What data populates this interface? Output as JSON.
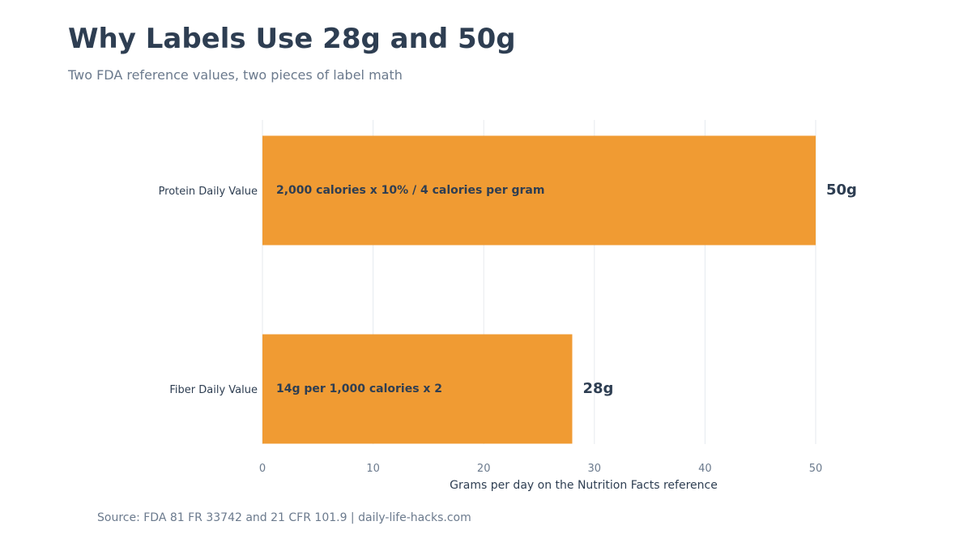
{
  "header": {
    "title": "Why Labels Use 28g and 50g",
    "subtitle": "Two FDA reference values, two pieces of label math"
  },
  "footer": {
    "source": "Source: FDA 81 FR 33742 and 21 CFR 101.9 | daily-life-hacks.com"
  },
  "colors": {
    "bar": "#f09b33",
    "text": "#2e3e52",
    "muted": "#6b7a8d",
    "grid": "#e6eaee"
  },
  "chart_data": {
    "type": "bar",
    "orientation": "horizontal",
    "categories": [
      "Protein Daily Value",
      "Fiber Daily Value"
    ],
    "values": [
      50,
      28
    ],
    "bar_annotations": [
      "2,000 calories x 10% / 4 calories per gram",
      "14g per 1,000 calories x 2"
    ],
    "value_labels": [
      "50g",
      "28g"
    ],
    "xlabel": "Grams per day on the Nutrition Facts reference",
    "ylabel": "",
    "xlim": [
      0,
      50
    ],
    "xticks": [
      "0",
      "10",
      "20",
      "30",
      "40",
      "50"
    ],
    "grid": "vertical"
  }
}
